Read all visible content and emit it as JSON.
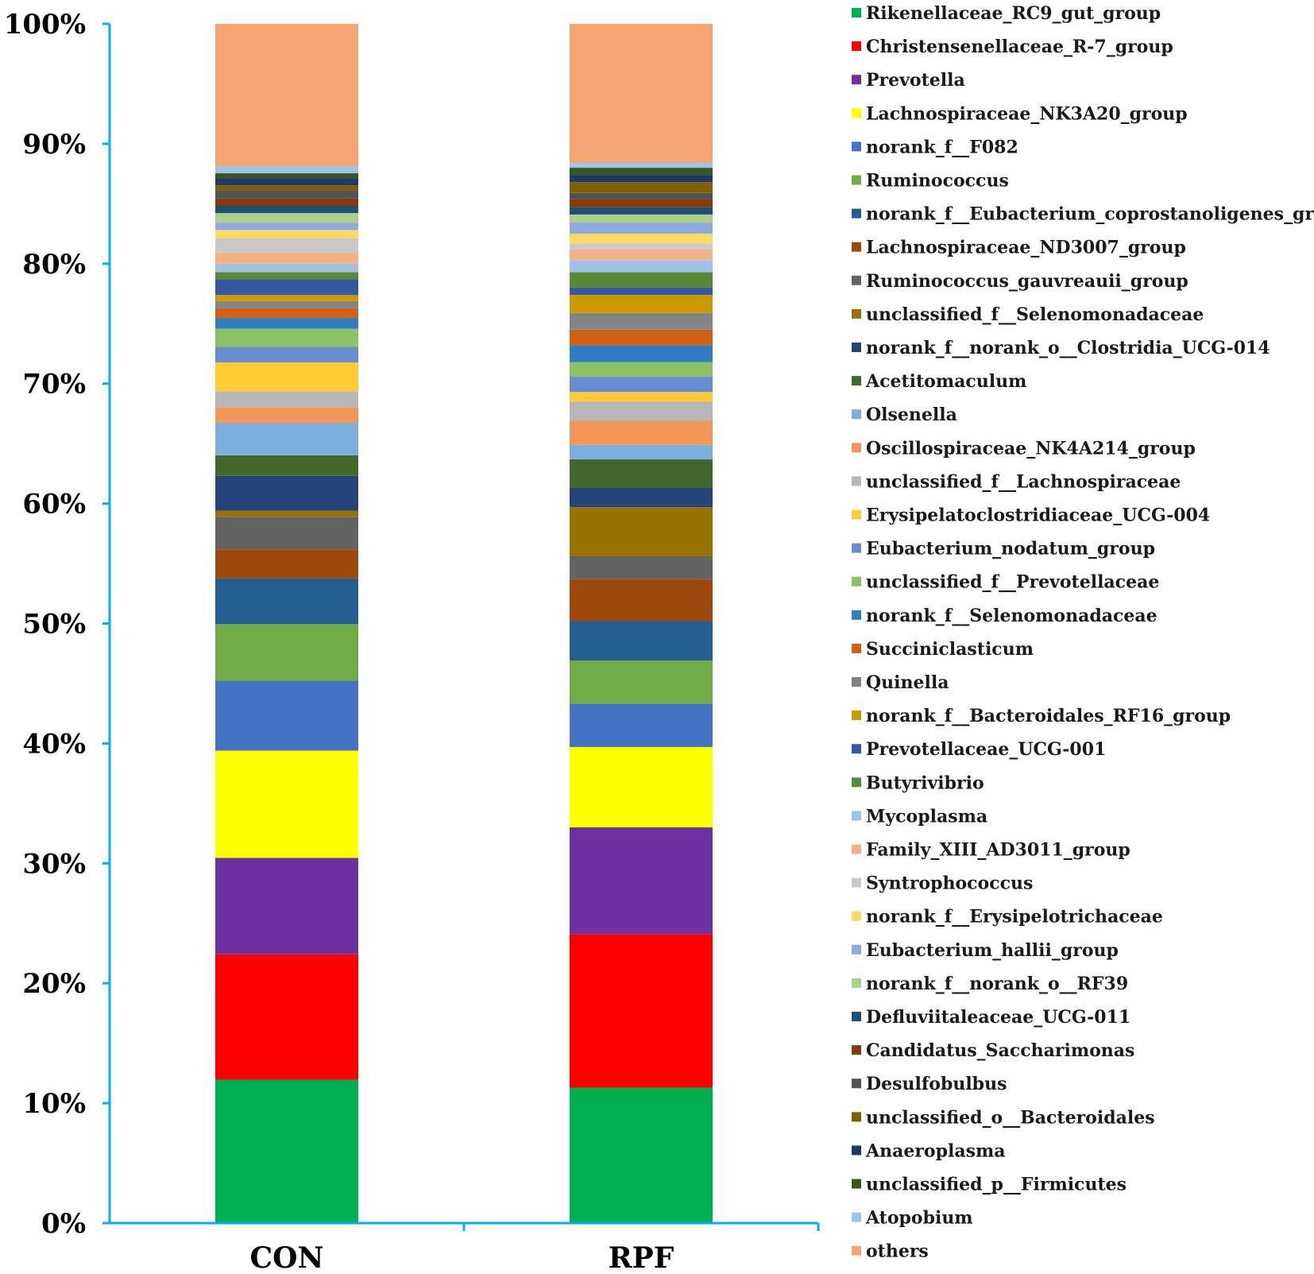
{
  "chart_data": {
    "type": "bar",
    "stacked": true,
    "title": "",
    "xlabel": "",
    "ylabel": "",
    "ylim": [
      0,
      100
    ],
    "yticks": [
      "0%",
      "10%",
      "20%",
      "30%",
      "40%",
      "50%",
      "60%",
      "70%",
      "80%",
      "90%",
      "100%"
    ],
    "categories": [
      "CON",
      "RPF"
    ],
    "series": [
      {
        "name": "Rikenellaceae_RC9_gut_group",
        "color": "#00b050",
        "values": [
          11.9,
          11.3
        ]
      },
      {
        "name": "Christensenellaceae_R-7_group",
        "color": "#ff0000",
        "values": [
          10.4,
          12.8
        ]
      },
      {
        "name": "Prevotella",
        "color": "#7030a0",
        "values": [
          8.0,
          8.9
        ]
      },
      {
        "name": "Lachnospiraceae_NK3A20_group",
        "color": "#ffff00",
        "values": [
          8.9,
          6.7
        ]
      },
      {
        "name": "norank_f__F082",
        "color": "#4472c4",
        "values": [
          5.8,
          3.6
        ]
      },
      {
        "name": "Ruminococcus",
        "color": "#70ad47",
        "values": [
          4.7,
          3.6
        ]
      },
      {
        "name": "norank_f__Eubacterium_coprostanoligenes_group",
        "color": "#255e91",
        "values": [
          3.8,
          3.3
        ]
      },
      {
        "name": "Lachnospiraceae_ND3007_group",
        "color": "#9e480e",
        "values": [
          2.4,
          3.5
        ]
      },
      {
        "name": "Ruminococcus_gauvreauii_group",
        "color": "#636363",
        "values": [
          2.7,
          1.9
        ]
      },
      {
        "name": "unclassified_f__Selenomonadaceae",
        "color": "#997300",
        "values": [
          0.5,
          4.1
        ]
      },
      {
        "name": "norank_f__norank_o__Clostridia_UCG-014",
        "color": "#264478",
        "values": [
          2.9,
          1.6
        ]
      },
      {
        "name": "Acetitomaculum",
        "color": "#43682b",
        "values": [
          1.7,
          2.4
        ]
      },
      {
        "name": "Olsenella",
        "color": "#7cafdd",
        "values": [
          2.7,
          1.2
        ]
      },
      {
        "name": "Oscillospiraceae_NK4A214_group",
        "color": "#f1975a",
        "values": [
          1.3,
          2.0
        ]
      },
      {
        "name": "unclassified_f__Lachnospiraceae",
        "color": "#b7b7b7",
        "values": [
          1.3,
          1.6
        ]
      },
      {
        "name": "Erysipelatoclostridiaceae_UCG-004",
        "color": "#ffcd33",
        "values": [
          2.4,
          0.8
        ]
      },
      {
        "name": "Eubacterium_nodatum_group",
        "color": "#698ed0",
        "values": [
          1.3,
          1.3
        ]
      },
      {
        "name": "unclassified_f__Prevotellaceae",
        "color": "#8cc168",
        "values": [
          1.5,
          1.2
        ]
      },
      {
        "name": "norank_f__Selenomonadaceae",
        "color": "#327dc2",
        "values": [
          0.9,
          1.4
        ]
      },
      {
        "name": "Succiniclasticum",
        "color": "#d26012",
        "values": [
          0.8,
          1.3
        ]
      },
      {
        "name": "Quinella",
        "color": "#848484",
        "values": [
          0.6,
          1.4
        ]
      },
      {
        "name": "norank_f__Bacteroidales_RF16_group",
        "color": "#cc9a00",
        "values": [
          0.5,
          1.5
        ]
      },
      {
        "name": "Prevotellaceae_UCG-001",
        "color": "#335aa1",
        "values": [
          1.3,
          0.6
        ]
      },
      {
        "name": "Butyrivibrio",
        "color": "#5a8a39",
        "values": [
          0.6,
          1.3
        ]
      },
      {
        "name": "Mycoplasma",
        "color": "#a3c1e6",
        "values": [
          0.7,
          1.0
        ]
      },
      {
        "name": "Family_XIII_AD3011_group",
        "color": "#f4b183",
        "values": [
          0.9,
          0.9
        ]
      },
      {
        "name": "Syntrophococcus",
        "color": "#c9c9c9",
        "values": [
          1.2,
          0.5
        ]
      },
      {
        "name": "norank_f__Erysipelotrichaceae",
        "color": "#ffd966",
        "values": [
          0.7,
          0.8
        ]
      },
      {
        "name": "Eubacterium_hallii_group",
        "color": "#8faadc",
        "values": [
          0.6,
          0.9
        ]
      },
      {
        "name": "norank_f__norank_o__RF39",
        "color": "#a9d18e",
        "values": [
          0.8,
          0.7
        ]
      },
      {
        "name": "Defluviitaleaceae_UCG-011",
        "color": "#1f4e79",
        "values": [
          0.6,
          0.6
        ]
      },
      {
        "name": "Candidatus_Saccharimonas",
        "color": "#843c0c",
        "values": [
          0.6,
          0.7
        ]
      },
      {
        "name": "Desulfobulbus",
        "color": "#525252",
        "values": [
          0.7,
          0.5
        ]
      },
      {
        "name": "unclassified_o__Bacteroidales",
        "color": "#7f6000",
        "values": [
          0.4,
          0.9
        ]
      },
      {
        "name": "Anaeroplasma",
        "color": "#203864",
        "values": [
          0.6,
          0.6
        ]
      },
      {
        "name": "unclassified_p__Firmicutes",
        "color": "#375623",
        "values": [
          0.4,
          0.6
        ]
      },
      {
        "name": "Atopobium",
        "color": "#9dc3e6",
        "values": [
          0.6,
          0.4
        ]
      },
      {
        "name": "others",
        "color": "#f4a672",
        "values": [
          11.8,
          11.6
        ]
      }
    ]
  }
}
